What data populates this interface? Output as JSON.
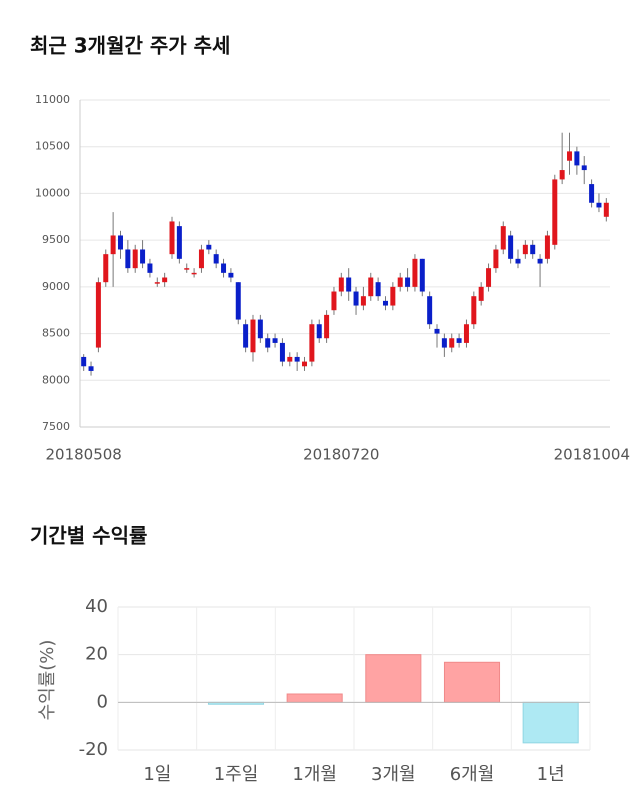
{
  "chart_data": [
    {
      "type": "candlestick",
      "title": "최근 3개월간 주가 추세",
      "categories": [
        "20180508",
        null,
        null,
        null,
        null,
        null,
        null,
        null,
        null,
        null,
        null,
        null,
        null,
        null,
        null,
        null,
        null,
        null,
        null,
        null,
        null,
        null,
        null,
        null,
        null,
        null,
        null,
        null,
        null,
        null,
        null,
        null,
        null,
        null,
        null,
        "20180720",
        null,
        null,
        null,
        null,
        null,
        null,
        null,
        null,
        null,
        null,
        null,
        null,
        null,
        null,
        null,
        null,
        null,
        null,
        null,
        null,
        null,
        null,
        null,
        null,
        null,
        null,
        null,
        null,
        null,
        null,
        null,
        null,
        null,
        null,
        null,
        "20181004"
      ],
      "open": [
        8250,
        8150,
        8350,
        9050,
        9350,
        9550,
        9400,
        9200,
        9400,
        9250,
        9050,
        9050,
        9350,
        9650,
        9200,
        9150,
        9200,
        9450,
        9350,
        9250,
        9150,
        9050,
        8600,
        8300,
        8650,
        8450,
        8450,
        8400,
        8200,
        8250,
        8150,
        8200,
        8600,
        8450,
        8750,
        8950,
        9100,
        8950,
        8800,
        8900,
        9050,
        8850,
        8800,
        9000,
        9100,
        9000,
        9300,
        8900,
        8550,
        8450,
        8350,
        8450,
        8400,
        8600,
        8850,
        9000,
        9200,
        9400,
        9550,
        9300,
        9350,
        9450,
        9300,
        9300,
        9450,
        10150,
        10350,
        10450,
        10300,
        10100,
        9900,
        9750
      ],
      "close": [
        8150,
        8100,
        9050,
        9350,
        9550,
        9400,
        9200,
        9400,
        9250,
        9150,
        9050,
        9100,
        9700,
        9300,
        9200,
        9150,
        9400,
        9400,
        9250,
        9150,
        9100,
        8650,
        8350,
        8650,
        8450,
        8350,
        8400,
        8200,
        8250,
        8200,
        8200,
        8600,
        8450,
        8700,
        8950,
        9100,
        8950,
        8800,
        8900,
        9100,
        8900,
        8800,
        9000,
        9100,
        9000,
        9300,
        8950,
        8600,
        8500,
        8350,
        8450,
        8400,
        8600,
        8900,
        9000,
        9200,
        9400,
        9650,
        9300,
        9250,
        9450,
        9350,
        9250,
        9550,
        10150,
        10250,
        10450,
        10300,
        10250,
        9900,
        9850,
        9900
      ],
      "high": [
        8280,
        8200,
        9100,
        9400,
        9800,
        9600,
        9500,
        9450,
        9500,
        9300,
        9100,
        9150,
        9750,
        9700,
        9250,
        9200,
        9450,
        9500,
        9400,
        9300,
        9200,
        9050,
        8650,
        8700,
        8700,
        8500,
        8500,
        8450,
        8300,
        8300,
        8250,
        8650,
        8650,
        8750,
        9000,
        9150,
        9200,
        9000,
        9000,
        9150,
        9100,
        8900,
        9050,
        9150,
        9200,
        9350,
        9300,
        8950,
        8600,
        8500,
        8500,
        8500,
        8650,
        8950,
        9050,
        9250,
        9450,
        9700,
        9600,
        9400,
        9500,
        9500,
        9350,
        9600,
        10200,
        10650,
        10650,
        10500,
        10400,
        10150,
        10000,
        9950
      ],
      "low": [
        8100,
        8050,
        8300,
        9000,
        9000,
        9300,
        9150,
        9150,
        9200,
        9100,
        9000,
        9000,
        9300,
        9250,
        9150,
        9100,
        9150,
        9350,
        9200,
        9100,
        9050,
        8600,
        8300,
        8200,
        8400,
        8300,
        8350,
        8150,
        8150,
        8100,
        8100,
        8150,
        8400,
        8400,
        8700,
        8900,
        8850,
        8700,
        8750,
        8850,
        8850,
        8750,
        8750,
        8950,
        8950,
        8950,
        8900,
        8550,
        8350,
        8250,
        8300,
        8350,
        8350,
        8550,
        8800,
        8950,
        9150,
        9350,
        9250,
        9200,
        9300,
        9300,
        9000,
        9250,
        9400,
        10100,
        10200,
        10200,
        10100,
        9850,
        9800,
        9700
      ],
      "up_color": "#e0161d",
      "down_color": "#0a1fc9",
      "ylim": [
        7500,
        11000
      ],
      "yticks": [
        7500,
        8000,
        8500,
        9000,
        9500,
        10000,
        10500,
        11000
      ],
      "grid": true
    },
    {
      "type": "bar",
      "title": "기간별 수익률",
      "y_label": "수익률(%)",
      "categories": [
        "1일",
        "1주일",
        "1개월",
        "3개월",
        "6개월",
        "1년"
      ],
      "values": [
        0,
        -0.8,
        3.5,
        20,
        16.8,
        -17
      ],
      "positive_color": "#ffa3a3",
      "negative_color": "#aee9f3",
      "ylim": [
        -20,
        40
      ],
      "yticks": [
        -20,
        0,
        20,
        40
      ],
      "grid": true
    }
  ]
}
